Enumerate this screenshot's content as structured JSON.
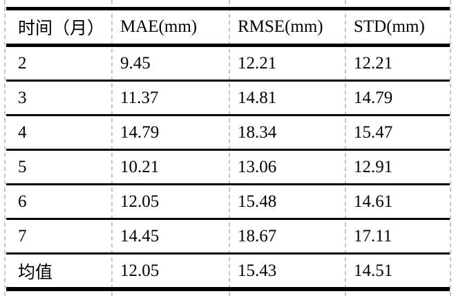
{
  "table": {
    "columns": [
      "时间（月）",
      "MAE(mm)",
      "RMSE(mm)",
      "STD(mm)"
    ],
    "rows": [
      [
        "2",
        "9.45",
        "12.21",
        "12.21"
      ],
      [
        "3",
        "11.37",
        "14.81",
        "14.79"
      ],
      [
        "4",
        "14.79",
        "18.34",
        "15.47"
      ],
      [
        "5",
        "10.21",
        "13.06",
        "12.91"
      ],
      [
        "6",
        "12.05",
        "15.48",
        "14.61"
      ],
      [
        "7",
        "14.45",
        "18.67",
        "17.11"
      ],
      [
        "均值",
        "12.05",
        "15.43",
        "14.51"
      ]
    ]
  },
  "style": {
    "background": "#ffffff",
    "text_color": "#000000",
    "rule_color": "#000000",
    "gridline_color": "#c6c6c6"
  }
}
